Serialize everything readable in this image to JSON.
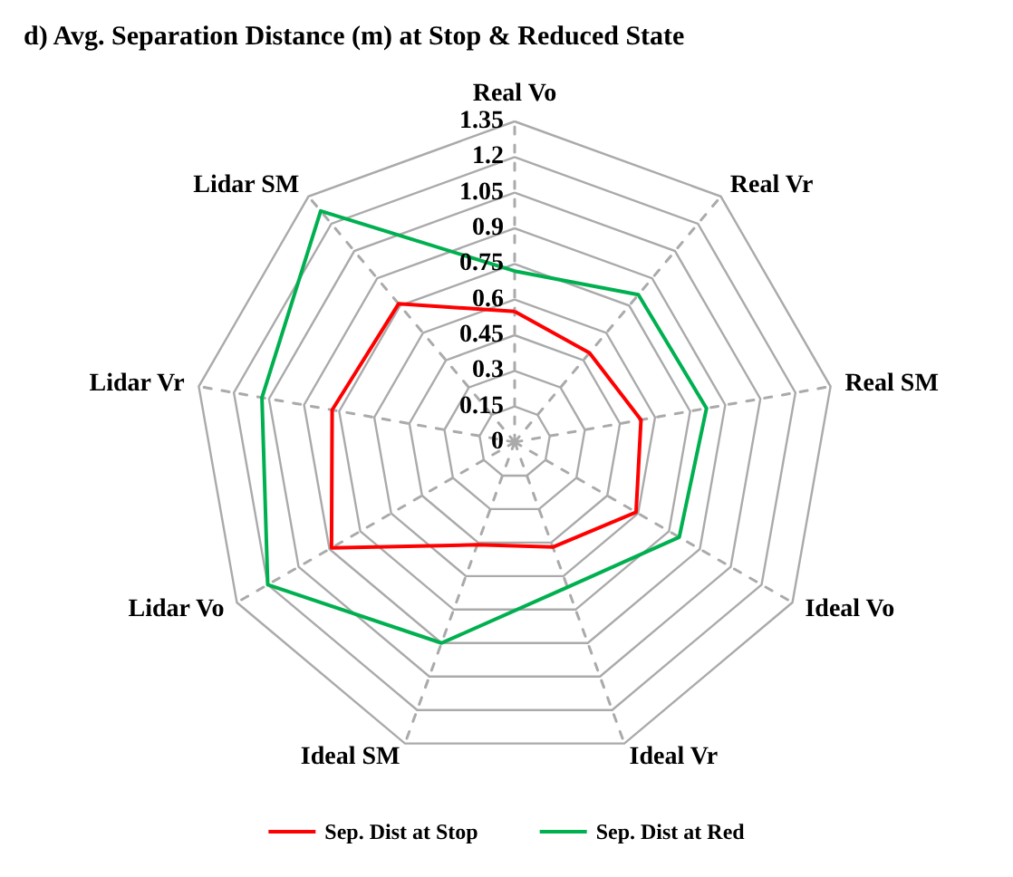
{
  "chart_data": {
    "type": "radar",
    "title": "d) Avg. Separation Distance (m) at Stop & Reduced State",
    "categories": [
      "Real Vo",
      "Real Vr",
      "Real SM",
      "Ideal Vo",
      "Ideal Vr",
      "Ideal SM",
      "Lidar Vo",
      "Lidar Vr",
      "Lidar SM"
    ],
    "series": [
      {
        "name": "Sep. Dist at Stop",
        "color": "#ff0000",
        "values": [
          0.55,
          0.49,
          0.54,
          0.59,
          0.47,
          0.46,
          0.89,
          0.78,
          0.76
        ]
      },
      {
        "name": "Sep. Dist at Red",
        "color": "#00b050",
        "values": [
          0.72,
          0.81,
          0.82,
          0.8,
          0.65,
          0.9,
          1.2,
          1.08,
          1.27
        ]
      }
    ],
    "ylim": [
      0,
      1.35
    ],
    "yticks": [
      0,
      0.15,
      0.3,
      0.45,
      0.6,
      0.75,
      0.9,
      1.05,
      1.2,
      1.35
    ],
    "grid": true,
    "legend": "bottom"
  }
}
